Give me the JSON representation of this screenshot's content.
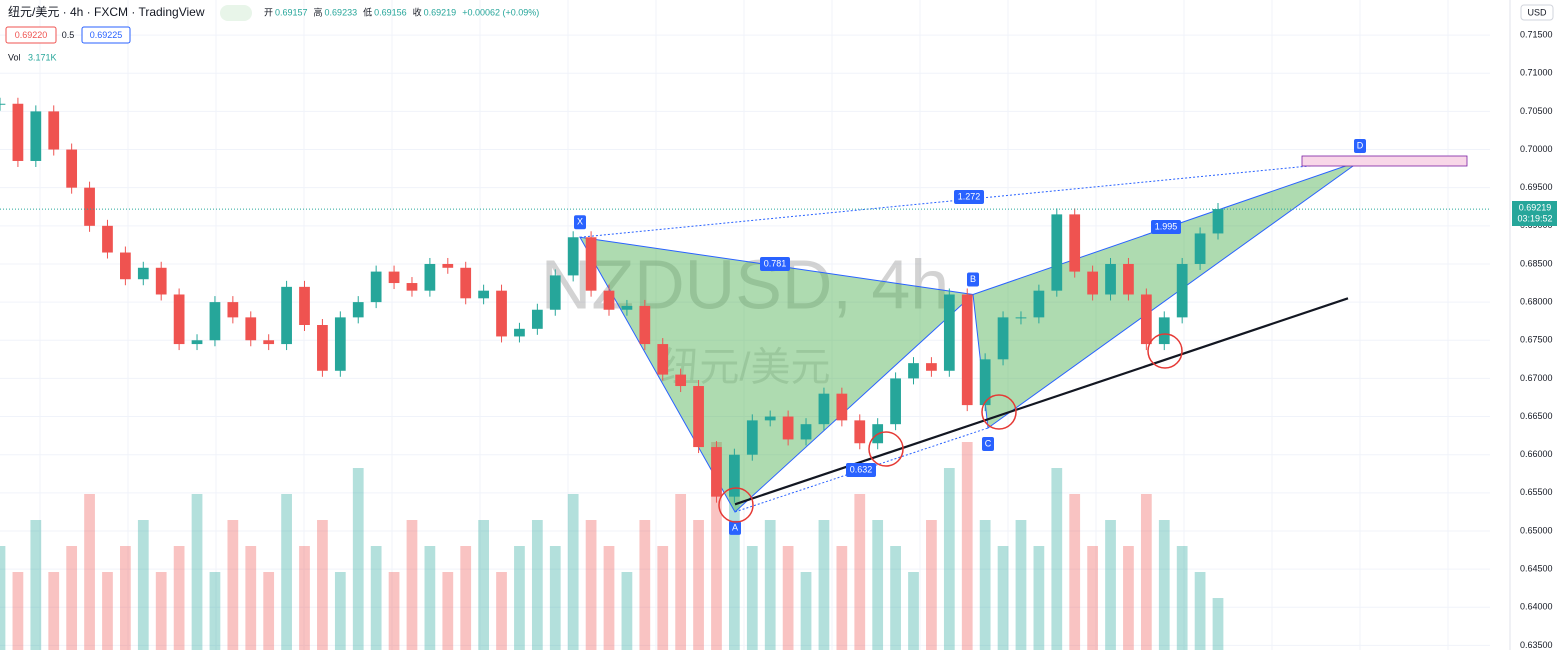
{
  "chart_data": {
    "type": "candlestick",
    "symbol_line": "纽元/美元 · 4h · FXCM · TradingView",
    "ohlc": [
      {
        "label": "开",
        "value": "0.69157"
      },
      {
        "label": "高",
        "value": "0.69233"
      },
      {
        "label": "低",
        "value": "0.69156"
      },
      {
        "label": "收",
        "value": "0.69219"
      }
    ],
    "change": "+0.00062 (+0.09%)",
    "bid": "0.69220",
    "spread": "0.5",
    "ask": "0.69225",
    "volume_label": "Vol",
    "volume_value": "3.171K",
    "watermark": "NZDUSD, 4h",
    "watermark_sub": "纽元/美元",
    "currency": "USD",
    "last_price": "0.69219",
    "countdown": "03:19:52",
    "ylim": [
      0.6344,
      0.7196
    ],
    "yticks": [
      {
        "value": 0.635,
        "label": "0.63500"
      },
      {
        "value": 0.64,
        "label": "0.64000"
      },
      {
        "value": 0.645,
        "label": "0.64500"
      },
      {
        "value": 0.65,
        "label": "0.65000"
      },
      {
        "value": 0.655,
        "label": "0.65500"
      },
      {
        "value": 0.66,
        "label": "0.66000"
      },
      {
        "value": 0.665,
        "label": "0.66500"
      },
      {
        "value": 0.67,
        "label": "0.67000"
      },
      {
        "value": 0.675,
        "label": "0.67500"
      },
      {
        "value": 0.68,
        "label": "0.68000"
      },
      {
        "value": 0.685,
        "label": "0.68500"
      },
      {
        "value": 0.69,
        "label": "0.69000"
      },
      {
        "value": 0.695,
        "label": "0.69500"
      },
      {
        "value": 0.7,
        "label": "0.70000"
      },
      {
        "value": 0.705,
        "label": "0.70500"
      },
      {
        "value": 0.71,
        "label": "0.71000"
      },
      {
        "value": 0.715,
        "label": "0.71500"
      }
    ],
    "values": [
      0.706,
      0.6985,
      0.705,
      0.7,
      0.695,
      0.69,
      0.6865,
      0.683,
      0.6845,
      0.681,
      0.6745,
      0.675,
      0.68,
      0.678,
      0.675,
      0.6745,
      0.682,
      0.677,
      0.671,
      0.678,
      0.68,
      0.684,
      0.6825,
      0.6815,
      0.685,
      0.6845,
      0.6805,
      0.6815,
      0.6755,
      0.6765,
      0.679,
      0.6835,
      0.6885,
      0.6815,
      0.679,
      0.6795,
      0.6745,
      0.6705,
      0.669,
      0.661,
      0.6545,
      0.66,
      0.6645,
      0.665,
      0.662,
      0.664,
      0.668,
      0.6645,
      0.6615,
      0.664,
      0.67,
      0.672,
      0.671,
      0.681,
      0.6665,
      0.6725,
      0.678,
      0.678,
      0.6815,
      0.6915,
      0.684,
      0.681,
      0.685,
      0.681,
      0.6745,
      0.678,
      0.685,
      0.689,
      0.6922
    ],
    "volume": [
      4,
      3,
      5,
      3,
      4,
      6,
      3,
      4,
      5,
      3,
      4,
      6,
      3,
      5,
      4,
      3,
      6,
      4,
      5,
      3,
      7,
      4,
      3,
      5,
      4,
      3,
      4,
      5,
      3,
      4,
      5,
      4,
      6,
      5,
      4,
      3,
      5,
      4,
      6,
      5,
      8,
      6,
      4,
      5,
      4,
      3,
      5,
      4,
      6,
      5,
      4,
      3,
      5,
      7,
      8,
      5,
      4,
      5,
      4,
      7,
      6,
      4,
      5,
      4,
      6,
      5,
      4,
      3,
      2
    ],
    "volume_lim": [
      0,
      25
    ],
    "pattern": {
      "points": [
        {
          "label": "X",
          "value": 0.6885
        },
        {
          "label": "A",
          "value": 0.6525
        },
        {
          "label": "B",
          "value": 0.681
        },
        {
          "label": "C",
          "value": 0.6635
        },
        {
          "label": "D",
          "value": 0.6985
        }
      ],
      "ratios": [
        "0.781",
        "0.632",
        "1.272",
        "1.995"
      ]
    },
    "trendline": [
      0.6535,
      0.6805
    ]
  }
}
